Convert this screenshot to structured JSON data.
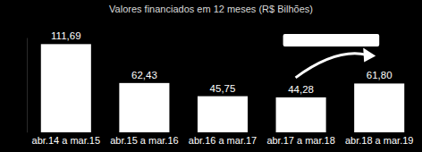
{
  "chart_data": {
    "type": "bar",
    "title": "Valores financiados em 12 meses (R$ Bilhões)",
    "categories": [
      "abr.14 a mar.15",
      "abr.15 a mar.16",
      "abr.16 a mar.17",
      "abr.17 a mar.18",
      "abr.18 a mar.19"
    ],
    "values": [
      111.69,
      62.43,
      45.75,
      44.28,
      61.8
    ],
    "value_labels": [
      "111,69",
      "62,43",
      "45,75",
      "44,28",
      "61,80"
    ],
    "color": "#ffffff",
    "ylim": [
      0,
      120
    ],
    "data_labels": true,
    "tick_labels": "x"
  }
}
